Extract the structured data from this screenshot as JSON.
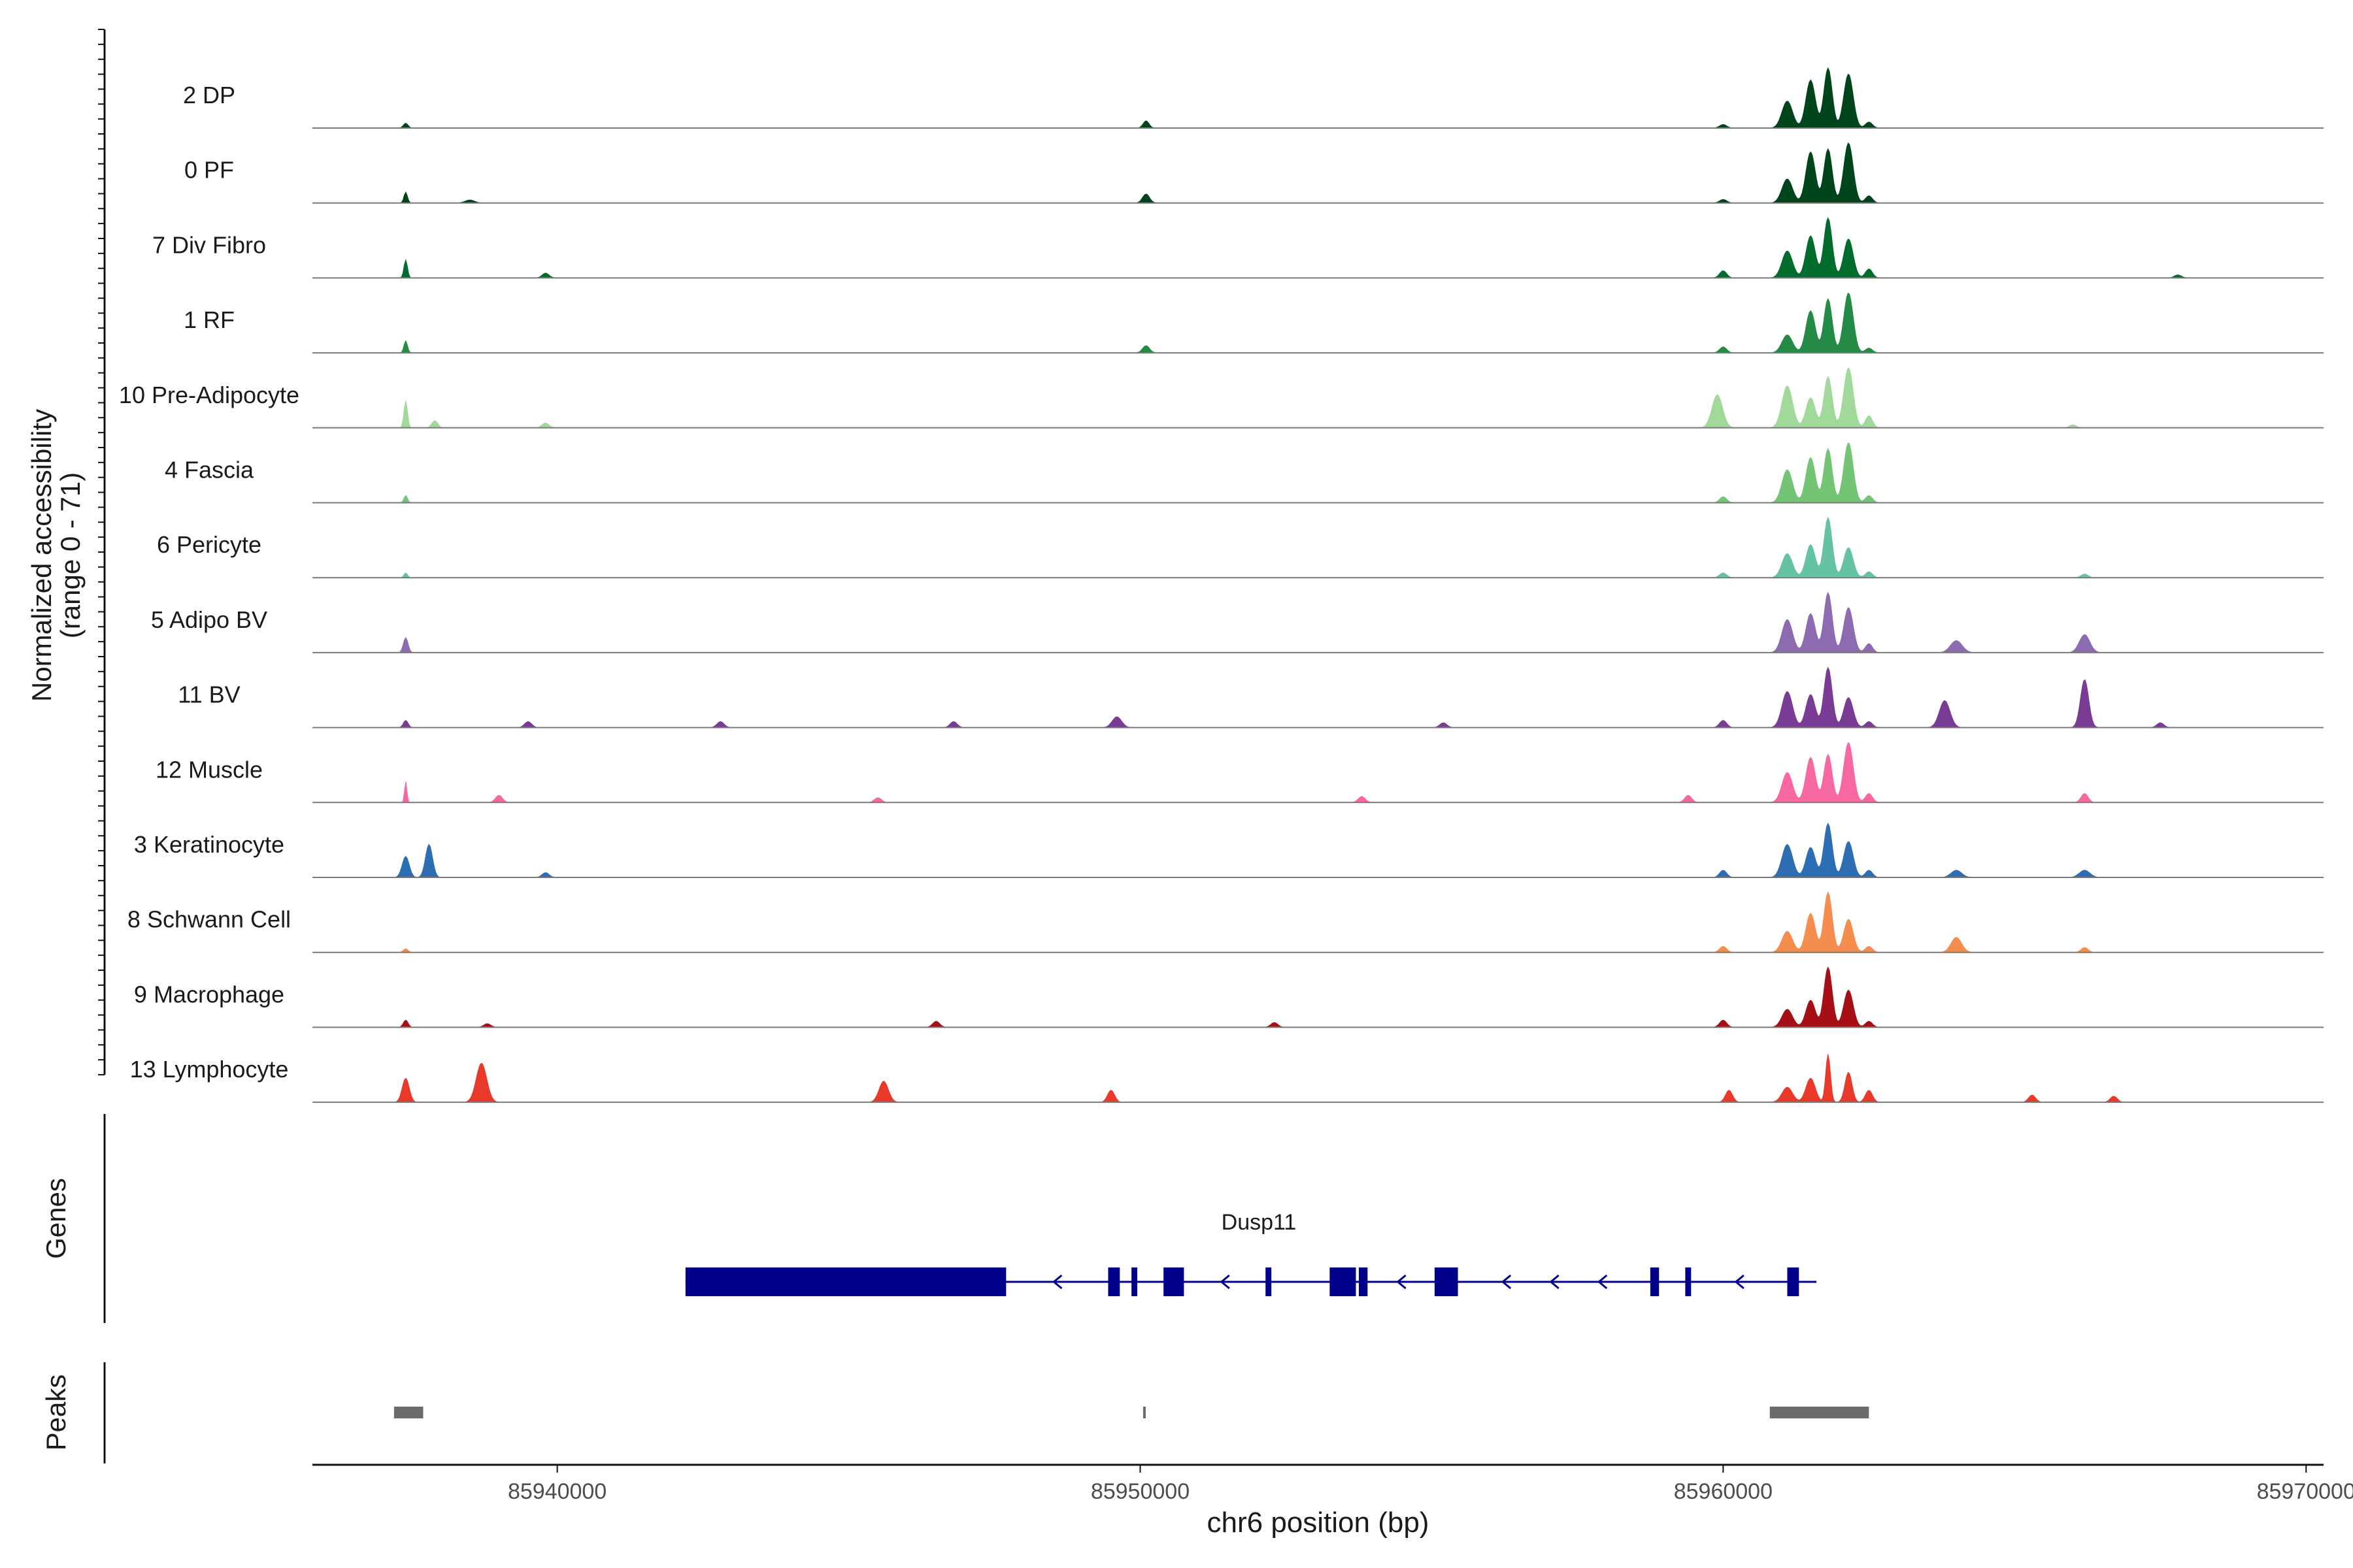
{
  "chart_data": {
    "type": "area",
    "title": "",
    "ylabel_line1": "Normalized accessibility",
    "ylabel_line2": "(range 0 - 71)",
    "yrange": [
      0,
      71
    ],
    "xlabel": "chr6 position (bp)",
    "xlim": [
      85935800,
      85970300
    ],
    "x_ticks": [
      85940000,
      85950000,
      85960000,
      85970000
    ],
    "x_tick_labels": [
      "85940000",
      "85950000",
      "85960000",
      "85970000"
    ],
    "tracks": [
      {
        "name": "2 DP",
        "color": "#00441b",
        "peaks": [
          [
            85937400,
            0.08,
            40
          ],
          [
            85950100,
            0.12,
            50
          ],
          [
            85960000,
            0.06,
            60
          ],
          [
            85961100,
            0.45,
            90
          ],
          [
            85961500,
            0.8,
            80
          ],
          [
            85961800,
            1.0,
            70
          ],
          [
            85962150,
            0.9,
            80
          ],
          [
            85962500,
            0.1,
            60
          ]
        ]
      },
      {
        "name": "0 PF",
        "color": "#00441b",
        "peaks": [
          [
            85937400,
            0.18,
            30
          ],
          [
            85938500,
            0.05,
            80
          ],
          [
            85950100,
            0.15,
            60
          ],
          [
            85960000,
            0.06,
            60
          ],
          [
            85961100,
            0.4,
            90
          ],
          [
            85961500,
            0.85,
            80
          ],
          [
            85961800,
            0.9,
            70
          ],
          [
            85962150,
            1.0,
            80
          ],
          [
            85962500,
            0.12,
            60
          ]
        ]
      },
      {
        "name": "7 Div Fibro",
        "color": "#006d2c",
        "peaks": [
          [
            85937400,
            0.3,
            30
          ],
          [
            85939800,
            0.08,
            60
          ],
          [
            85960000,
            0.12,
            60
          ],
          [
            85961100,
            0.45,
            90
          ],
          [
            85961500,
            0.7,
            80
          ],
          [
            85961800,
            1.0,
            70
          ],
          [
            85962150,
            0.65,
            80
          ],
          [
            85962500,
            0.15,
            60
          ],
          [
            85967800,
            0.05,
            60
          ]
        ]
      },
      {
        "name": "1 RF",
        "color": "#238b45",
        "peaks": [
          [
            85937400,
            0.2,
            30
          ],
          [
            85950100,
            0.12,
            60
          ],
          [
            85960000,
            0.1,
            60
          ],
          [
            85961100,
            0.3,
            90
          ],
          [
            85961500,
            0.7,
            80
          ],
          [
            85961800,
            0.9,
            70
          ],
          [
            85962150,
            1.0,
            80
          ],
          [
            85962500,
            0.08,
            60
          ]
        ]
      },
      {
        "name": "10 Pre-Adipocyte",
        "color": "#a1d99b",
        "peaks": [
          [
            85937400,
            0.45,
            30
          ],
          [
            85937900,
            0.12,
            50
          ],
          [
            85939800,
            0.08,
            60
          ],
          [
            85959900,
            0.55,
            90
          ],
          [
            85961100,
            0.7,
            90
          ],
          [
            85961500,
            0.5,
            80
          ],
          [
            85961800,
            0.85,
            70
          ],
          [
            85962150,
            1.0,
            80
          ],
          [
            85962500,
            0.2,
            60
          ],
          [
            85966000,
            0.05,
            60
          ]
        ]
      },
      {
        "name": "4 Fascia",
        "color": "#74c476",
        "peaks": [
          [
            85937400,
            0.12,
            30
          ],
          [
            85960000,
            0.1,
            60
          ],
          [
            85961100,
            0.55,
            90
          ],
          [
            85961500,
            0.75,
            80
          ],
          [
            85961800,
            0.9,
            70
          ],
          [
            85962150,
            1.0,
            80
          ],
          [
            85962500,
            0.12,
            60
          ]
        ]
      },
      {
        "name": "6 Pericyte",
        "color": "#66c2a4",
        "peaks": [
          [
            85937400,
            0.08,
            30
          ],
          [
            85960000,
            0.08,
            60
          ],
          [
            85961100,
            0.4,
            90
          ],
          [
            85961500,
            0.55,
            80
          ],
          [
            85961800,
            1.0,
            70
          ],
          [
            85962150,
            0.5,
            80
          ],
          [
            85962500,
            0.1,
            60
          ],
          [
            85966200,
            0.06,
            60
          ]
        ]
      },
      {
        "name": "5 Adipo BV",
        "color": "#8c6bb1",
        "peaks": [
          [
            85937400,
            0.25,
            40
          ],
          [
            85961100,
            0.55,
            90
          ],
          [
            85961500,
            0.65,
            80
          ],
          [
            85961800,
            1.0,
            70
          ],
          [
            85962150,
            0.75,
            80
          ],
          [
            85962500,
            0.15,
            60
          ],
          [
            85964000,
            0.2,
            100
          ],
          [
            85966200,
            0.3,
            90
          ]
        ]
      },
      {
        "name": "11 BV",
        "color": "#7a3b95",
        "peaks": [
          [
            85937400,
            0.12,
            40
          ],
          [
            85939500,
            0.1,
            60
          ],
          [
            85942800,
            0.1,
            60
          ],
          [
            85946800,
            0.1,
            60
          ],
          [
            85949600,
            0.18,
            80
          ],
          [
            85955200,
            0.08,
            60
          ],
          [
            85960000,
            0.12,
            60
          ],
          [
            85961100,
            0.6,
            90
          ],
          [
            85961500,
            0.55,
            80
          ],
          [
            85961800,
            1.0,
            70
          ],
          [
            85962150,
            0.5,
            80
          ],
          [
            85962500,
            0.1,
            60
          ],
          [
            85963800,
            0.45,
            90
          ],
          [
            85966200,
            0.8,
            70
          ],
          [
            85967500,
            0.08,
            60
          ]
        ]
      },
      {
        "name": "12 Muscle",
        "color": "#f768a1",
        "peaks": [
          [
            85937400,
            0.35,
            20
          ],
          [
            85939000,
            0.12,
            60
          ],
          [
            85945500,
            0.08,
            60
          ],
          [
            85953800,
            0.1,
            60
          ],
          [
            85959400,
            0.12,
            60
          ],
          [
            85961100,
            0.5,
            90
          ],
          [
            85961500,
            0.75,
            80
          ],
          [
            85961800,
            0.8,
            70
          ],
          [
            85962150,
            1.0,
            80
          ],
          [
            85962500,
            0.15,
            60
          ],
          [
            85966200,
            0.15,
            60
          ]
        ]
      },
      {
        "name": "3 Keratinocyte",
        "color": "#2c6db3",
        "peaks": [
          [
            85937400,
            0.35,
            60
          ],
          [
            85937800,
            0.55,
            60
          ],
          [
            85939800,
            0.08,
            60
          ],
          [
            85960000,
            0.12,
            60
          ],
          [
            85961100,
            0.55,
            90
          ],
          [
            85961500,
            0.5,
            80
          ],
          [
            85961800,
            0.9,
            70
          ],
          [
            85962150,
            0.6,
            80
          ],
          [
            85962500,
            0.12,
            60
          ],
          [
            85964000,
            0.12,
            90
          ],
          [
            85966200,
            0.12,
            90
          ]
        ]
      },
      {
        "name": "8 Schwann Cell",
        "color": "#f58d4e",
        "peaks": [
          [
            85937400,
            0.06,
            40
          ],
          [
            85960000,
            0.1,
            60
          ],
          [
            85961100,
            0.35,
            90
          ],
          [
            85961500,
            0.65,
            80
          ],
          [
            85961800,
            1.0,
            70
          ],
          [
            85962150,
            0.55,
            80
          ],
          [
            85962500,
            0.1,
            60
          ],
          [
            85964000,
            0.25,
            90
          ],
          [
            85966200,
            0.08,
            60
          ]
        ]
      },
      {
        "name": "9 Macrophage",
        "color": "#a50f15",
        "peaks": [
          [
            85937400,
            0.12,
            40
          ],
          [
            85938800,
            0.06,
            60
          ],
          [
            85946500,
            0.1,
            60
          ],
          [
            85952300,
            0.08,
            60
          ],
          [
            85960000,
            0.12,
            60
          ],
          [
            85961100,
            0.3,
            90
          ],
          [
            85961500,
            0.45,
            80
          ],
          [
            85961800,
            1.0,
            70
          ],
          [
            85962150,
            0.62,
            80
          ],
          [
            85962500,
            0.1,
            60
          ]
        ]
      },
      {
        "name": "13 Lymphocyte",
        "color": "#e8392a",
        "peaks": [
          [
            85937400,
            0.4,
            60
          ],
          [
            85938700,
            0.65,
            90
          ],
          [
            85945600,
            0.35,
            80
          ],
          [
            85949500,
            0.2,
            60
          ],
          [
            85960100,
            0.2,
            60
          ],
          [
            85961100,
            0.25,
            90
          ],
          [
            85961500,
            0.4,
            80
          ],
          [
            85961800,
            0.8,
            40
          ],
          [
            85962150,
            0.5,
            60
          ],
          [
            85962500,
            0.2,
            60
          ],
          [
            85965300,
            0.12,
            60
          ],
          [
            85966700,
            0.1,
            60
          ]
        ]
      }
    ],
    "genes": {
      "label": "Genes",
      "gene_name": "Dusp11",
      "color": "#00008b",
      "start": 85942200,
      "end": 85961600,
      "strand": "-",
      "exons": [
        [
          85942200,
          85947700
        ],
        [
          85949450,
          85949650
        ],
        [
          85949850,
          85949950
        ],
        [
          85950400,
          85950750
        ],
        [
          85952150,
          85952250
        ],
        [
          85953250,
          85953700
        ],
        [
          85953750,
          85953900
        ],
        [
          85955050,
          85955450
        ],
        [
          85958750,
          85958900
        ],
        [
          85959350,
          85959450
        ],
        [
          85961100,
          85961300
        ]
      ]
    },
    "peaks_track": {
      "label": "Peaks",
      "color": "#6b6b6b",
      "regions": [
        [
          85937200,
          85937700
        ],
        [
          85950050,
          85950080
        ],
        [
          85960800,
          85962500
        ]
      ]
    }
  }
}
